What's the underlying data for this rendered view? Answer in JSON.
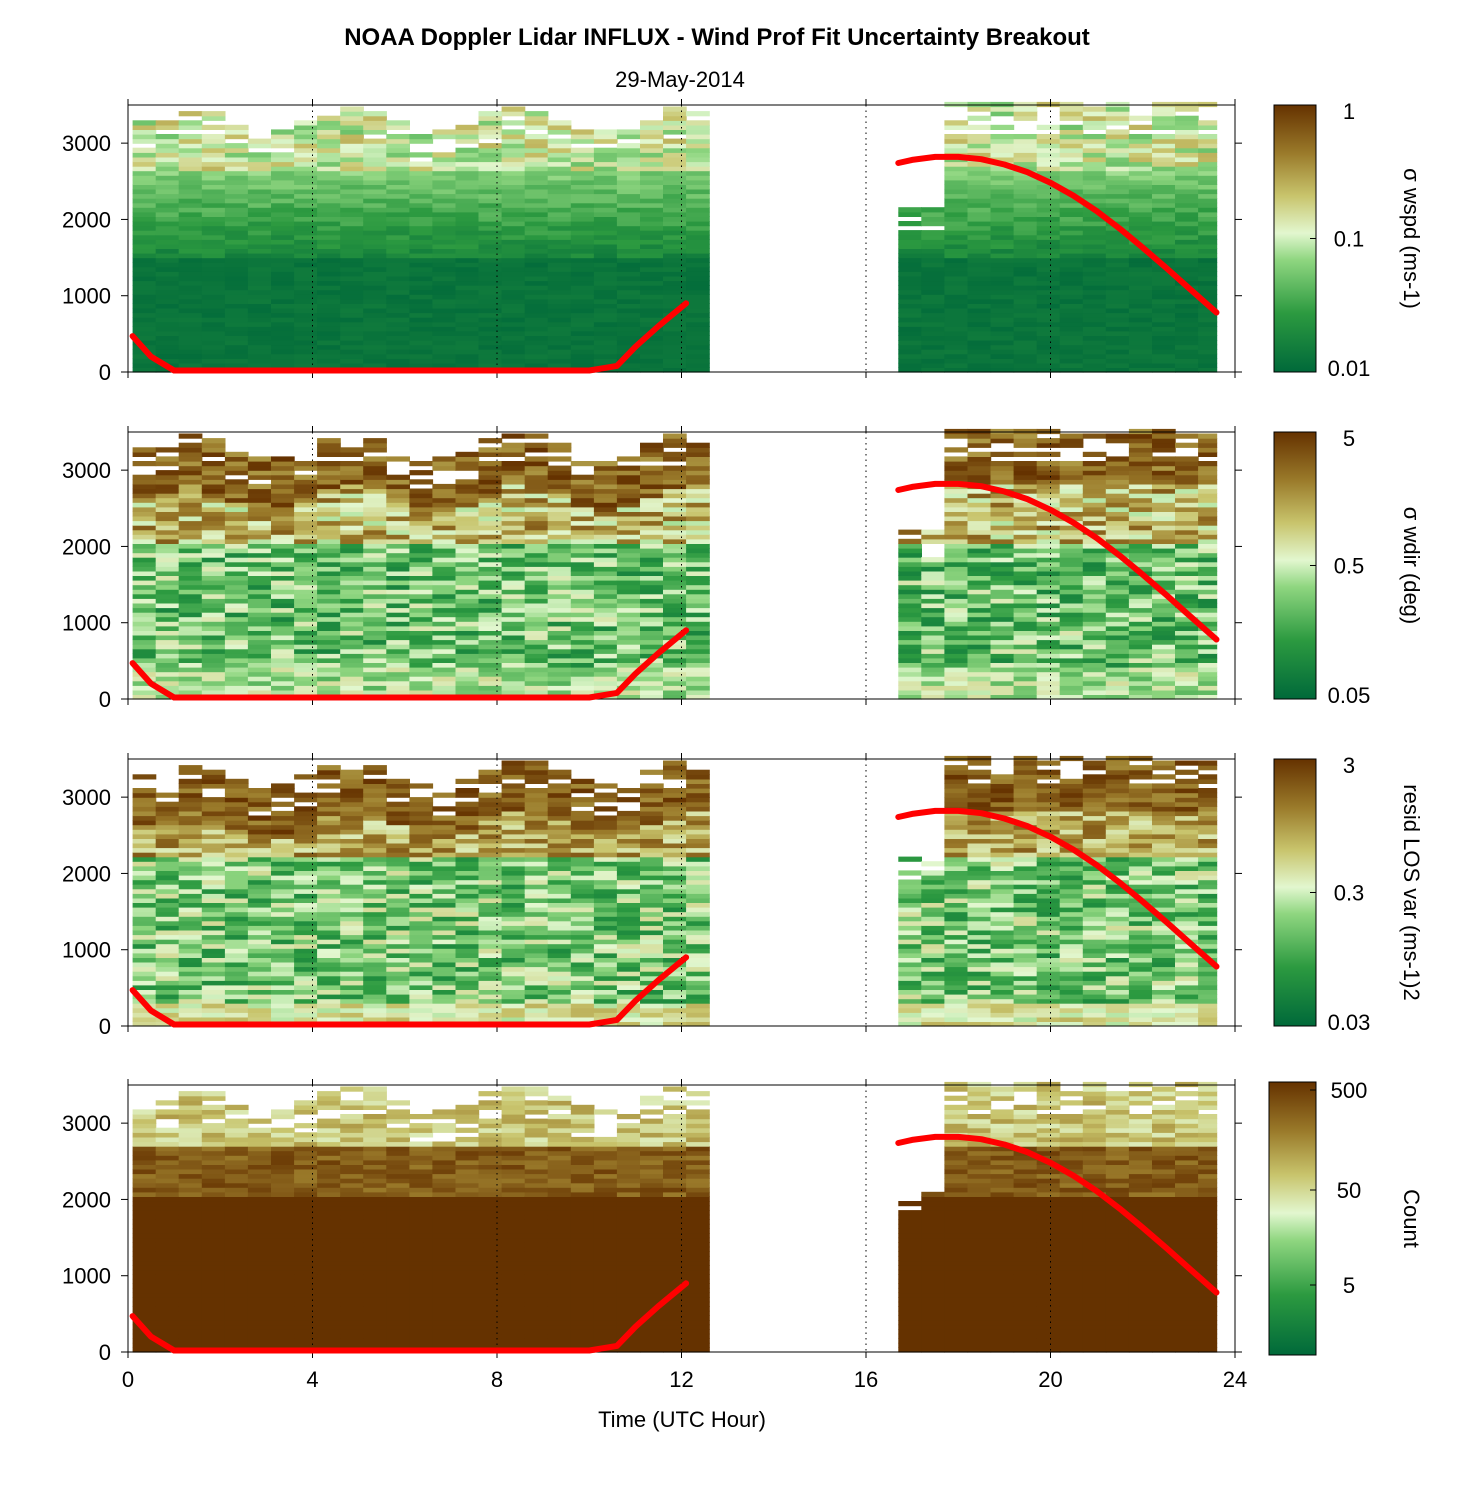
{
  "figure": {
    "title": "NOAA Doppler Lidar INFLUX - Wind Prof Fit Uncertainty Breakout",
    "subtitle": "29-May-2014",
    "xlabel": "Time (UTC Hour)",
    "x_ticks": [
      "0",
      "4",
      "8",
      "12",
      "16",
      "20",
      "24"
    ],
    "y_ticks": [
      "0",
      "1000",
      "2000",
      "3000"
    ]
  },
  "colors": {
    "dark_green": "#00693a",
    "mid_green": "#3aaa42",
    "pale_green": "#d8f5c0",
    "tan": "#c0b45a",
    "brown": "#653200",
    "overlay_line": "#ff0000"
  },
  "chart_data": [
    {
      "type": "heatmap",
      "panel": "sigma-wspd",
      "colorbar_label": "σ wspd (ms-1)",
      "colorbar_ticks": [
        "1",
        "0.1",
        "0.01"
      ],
      "colorbar_scale": "log",
      "clim": [
        0.01,
        1
      ],
      "xlim": [
        0,
        24
      ],
      "ylim": [
        0,
        3500
      ],
      "grid": "vertical dotted lines at 4-hour ticks",
      "data_gap_hours": [
        12.6,
        16.6
      ],
      "description_values": {
        "below_1500m": "≈0.01 (dark green)",
        "1500_2600m": "≈0.02–0.05 (green)",
        "top_of_profile": "≈0.1–0.5 (pale green to tan)"
      }
    },
    {
      "type": "heatmap",
      "panel": "sigma-wdir",
      "colorbar_label": "σ wdir (deg)",
      "colorbar_ticks": [
        "5",
        "0.5",
        "0.05"
      ],
      "colorbar_scale": "log",
      "clim": [
        0.05,
        5
      ],
      "xlim": [
        0,
        24
      ],
      "ylim": [
        0,
        3500
      ],
      "data_gap_hours": [
        12.6,
        16.6
      ]
    },
    {
      "type": "heatmap",
      "panel": "resid-los-var",
      "colorbar_label": "resid LOS var (ms-1)2",
      "colorbar_ticks": [
        "3",
        "0.3",
        "0.03"
      ],
      "colorbar_scale": "log",
      "clim": [
        0.03,
        3
      ],
      "xlim": [
        0,
        24
      ],
      "ylim": [
        0,
        3500
      ],
      "data_gap_hours": [
        12.6,
        16.6
      ]
    },
    {
      "type": "heatmap",
      "panel": "count",
      "colorbar_label": "Count",
      "colorbar_ticks": [
        "500",
        "50",
        "5"
      ],
      "colorbar_scale": "log",
      "clim": [
        1,
        500
      ],
      "xlim": [
        0,
        24
      ],
      "ylim": [
        0,
        3500
      ],
      "data_gap_hours": [
        12.6,
        16.6
      ]
    },
    {
      "type": "line",
      "panel": "all",
      "series": [
        {
          "color": "#ff0000",
          "x": [
            0.1,
            0.5,
            1.0,
            2,
            4,
            6,
            8,
            10.0,
            10.6,
            11.0,
            11.5,
            12.1
          ],
          "y": [
            470,
            200,
            20,
            20,
            20,
            20,
            20,
            20,
            80,
            330,
            600,
            900
          ]
        },
        {
          "color": "#ff0000",
          "x": [
            16.7,
            17.0,
            17.5,
            18.0,
            18.5,
            19.0,
            19.5,
            20.0,
            20.5,
            21.0,
            21.5,
            22.0,
            22.5,
            23.0,
            23.6
          ],
          "y": [
            2740,
            2780,
            2820,
            2820,
            2790,
            2720,
            2620,
            2480,
            2310,
            2110,
            1880,
            1630,
            1370,
            1100,
            780
          ]
        }
      ]
    }
  ]
}
